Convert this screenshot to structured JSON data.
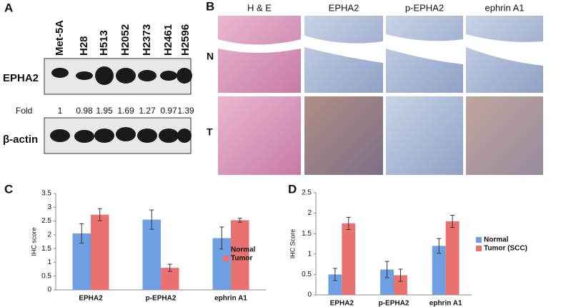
{
  "panels": {
    "a": {
      "label": "A",
      "lanes": [
        "Met-5A",
        "H28",
        "H513",
        "H2052",
        "H2373",
        "H2461",
        "H2596"
      ],
      "protein": "EPHA2",
      "fold_label": "Fold",
      "fold": [
        1,
        0.98,
        1.95,
        1.69,
        1.27,
        0.97,
        1.39
      ],
      "control": "β-actin"
    },
    "b": {
      "label": "B",
      "columns": [
        "H & E",
        "EPHA2",
        "p-EPHA2",
        "ephrin A1"
      ],
      "rows": [
        "N",
        "T"
      ]
    }
  },
  "chart_data": [
    {
      "type": "bar",
      "panel_label": "C",
      "y_label": "IHC score",
      "categories": [
        "EPHA2",
        "p-EPHA2",
        "ephrin A1"
      ],
      "series": [
        {
          "name": "Normal",
          "color": "#6f9fe3",
          "values": [
            2.05,
            2.55,
            1.88
          ],
          "errors": [
            0.35,
            0.35,
            0.4
          ]
        },
        {
          "name": "Tumor",
          "color": "#e9716f",
          "values": [
            2.73,
            0.8,
            2.53
          ],
          "errors": [
            0.22,
            0.13,
            0.07
          ]
        }
      ],
      "ylim": [
        0,
        3.5
      ],
      "yticks": [
        0,
        0.5,
        1,
        1.5,
        2,
        2.5,
        3,
        3.5
      ],
      "grid": false
    },
    {
      "type": "bar",
      "panel_label": "D",
      "y_label": "IHC Score",
      "categories": [
        "EPHA2",
        "p-EPHA2",
        "ephrin A1"
      ],
      "series": [
        {
          "name": "Normal",
          "color": "#6f9fe3",
          "values": [
            0.5,
            0.62,
            1.2
          ],
          "errors": [
            0.15,
            0.2,
            0.18
          ]
        },
        {
          "name": "Tumor (SCC)",
          "color": "#e9716f",
          "values": [
            1.75,
            0.48,
            1.8
          ],
          "errors": [
            0.15,
            0.15,
            0.15
          ]
        }
      ],
      "ylim": [
        0,
        2.5
      ],
      "yticks": [
        0,
        0.5,
        1,
        1.5,
        2,
        2.5
      ],
      "grid": false
    }
  ]
}
